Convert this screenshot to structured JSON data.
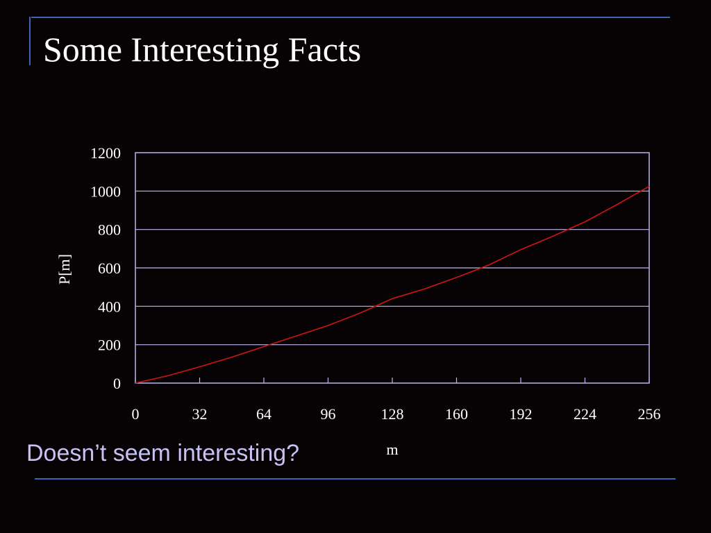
{
  "slide": {
    "title": "Some Interesting Facts",
    "caption": "Doesn’t seem interesting?"
  },
  "colors": {
    "background": "#070304",
    "accent_rule": "#3f64b4",
    "grid": "#b8b8f0",
    "series": "#d21414",
    "caption": "#c7c2f6"
  },
  "chart_data": {
    "type": "line",
    "xlabel": "m",
    "ylabel": "P[m]",
    "xlim": [
      0,
      256
    ],
    "ylim": [
      0,
      1200
    ],
    "xticks": [
      0,
      32,
      64,
      96,
      128,
      160,
      192,
      224,
      256
    ],
    "yticks": [
      0,
      200,
      400,
      600,
      800,
      1000,
      1200
    ],
    "grid": "horizontal",
    "series": [
      {
        "x": [
          0,
          16,
          32,
          48,
          64,
          80,
          96,
          112,
          128,
          144,
          160,
          176,
          192,
          208,
          224,
          240,
          256
        ],
        "values": [
          0,
          38,
          85,
          135,
          190,
          245,
          300,
          365,
          440,
          490,
          550,
          615,
          695,
          765,
          840,
          930,
          1025
        ]
      }
    ]
  }
}
